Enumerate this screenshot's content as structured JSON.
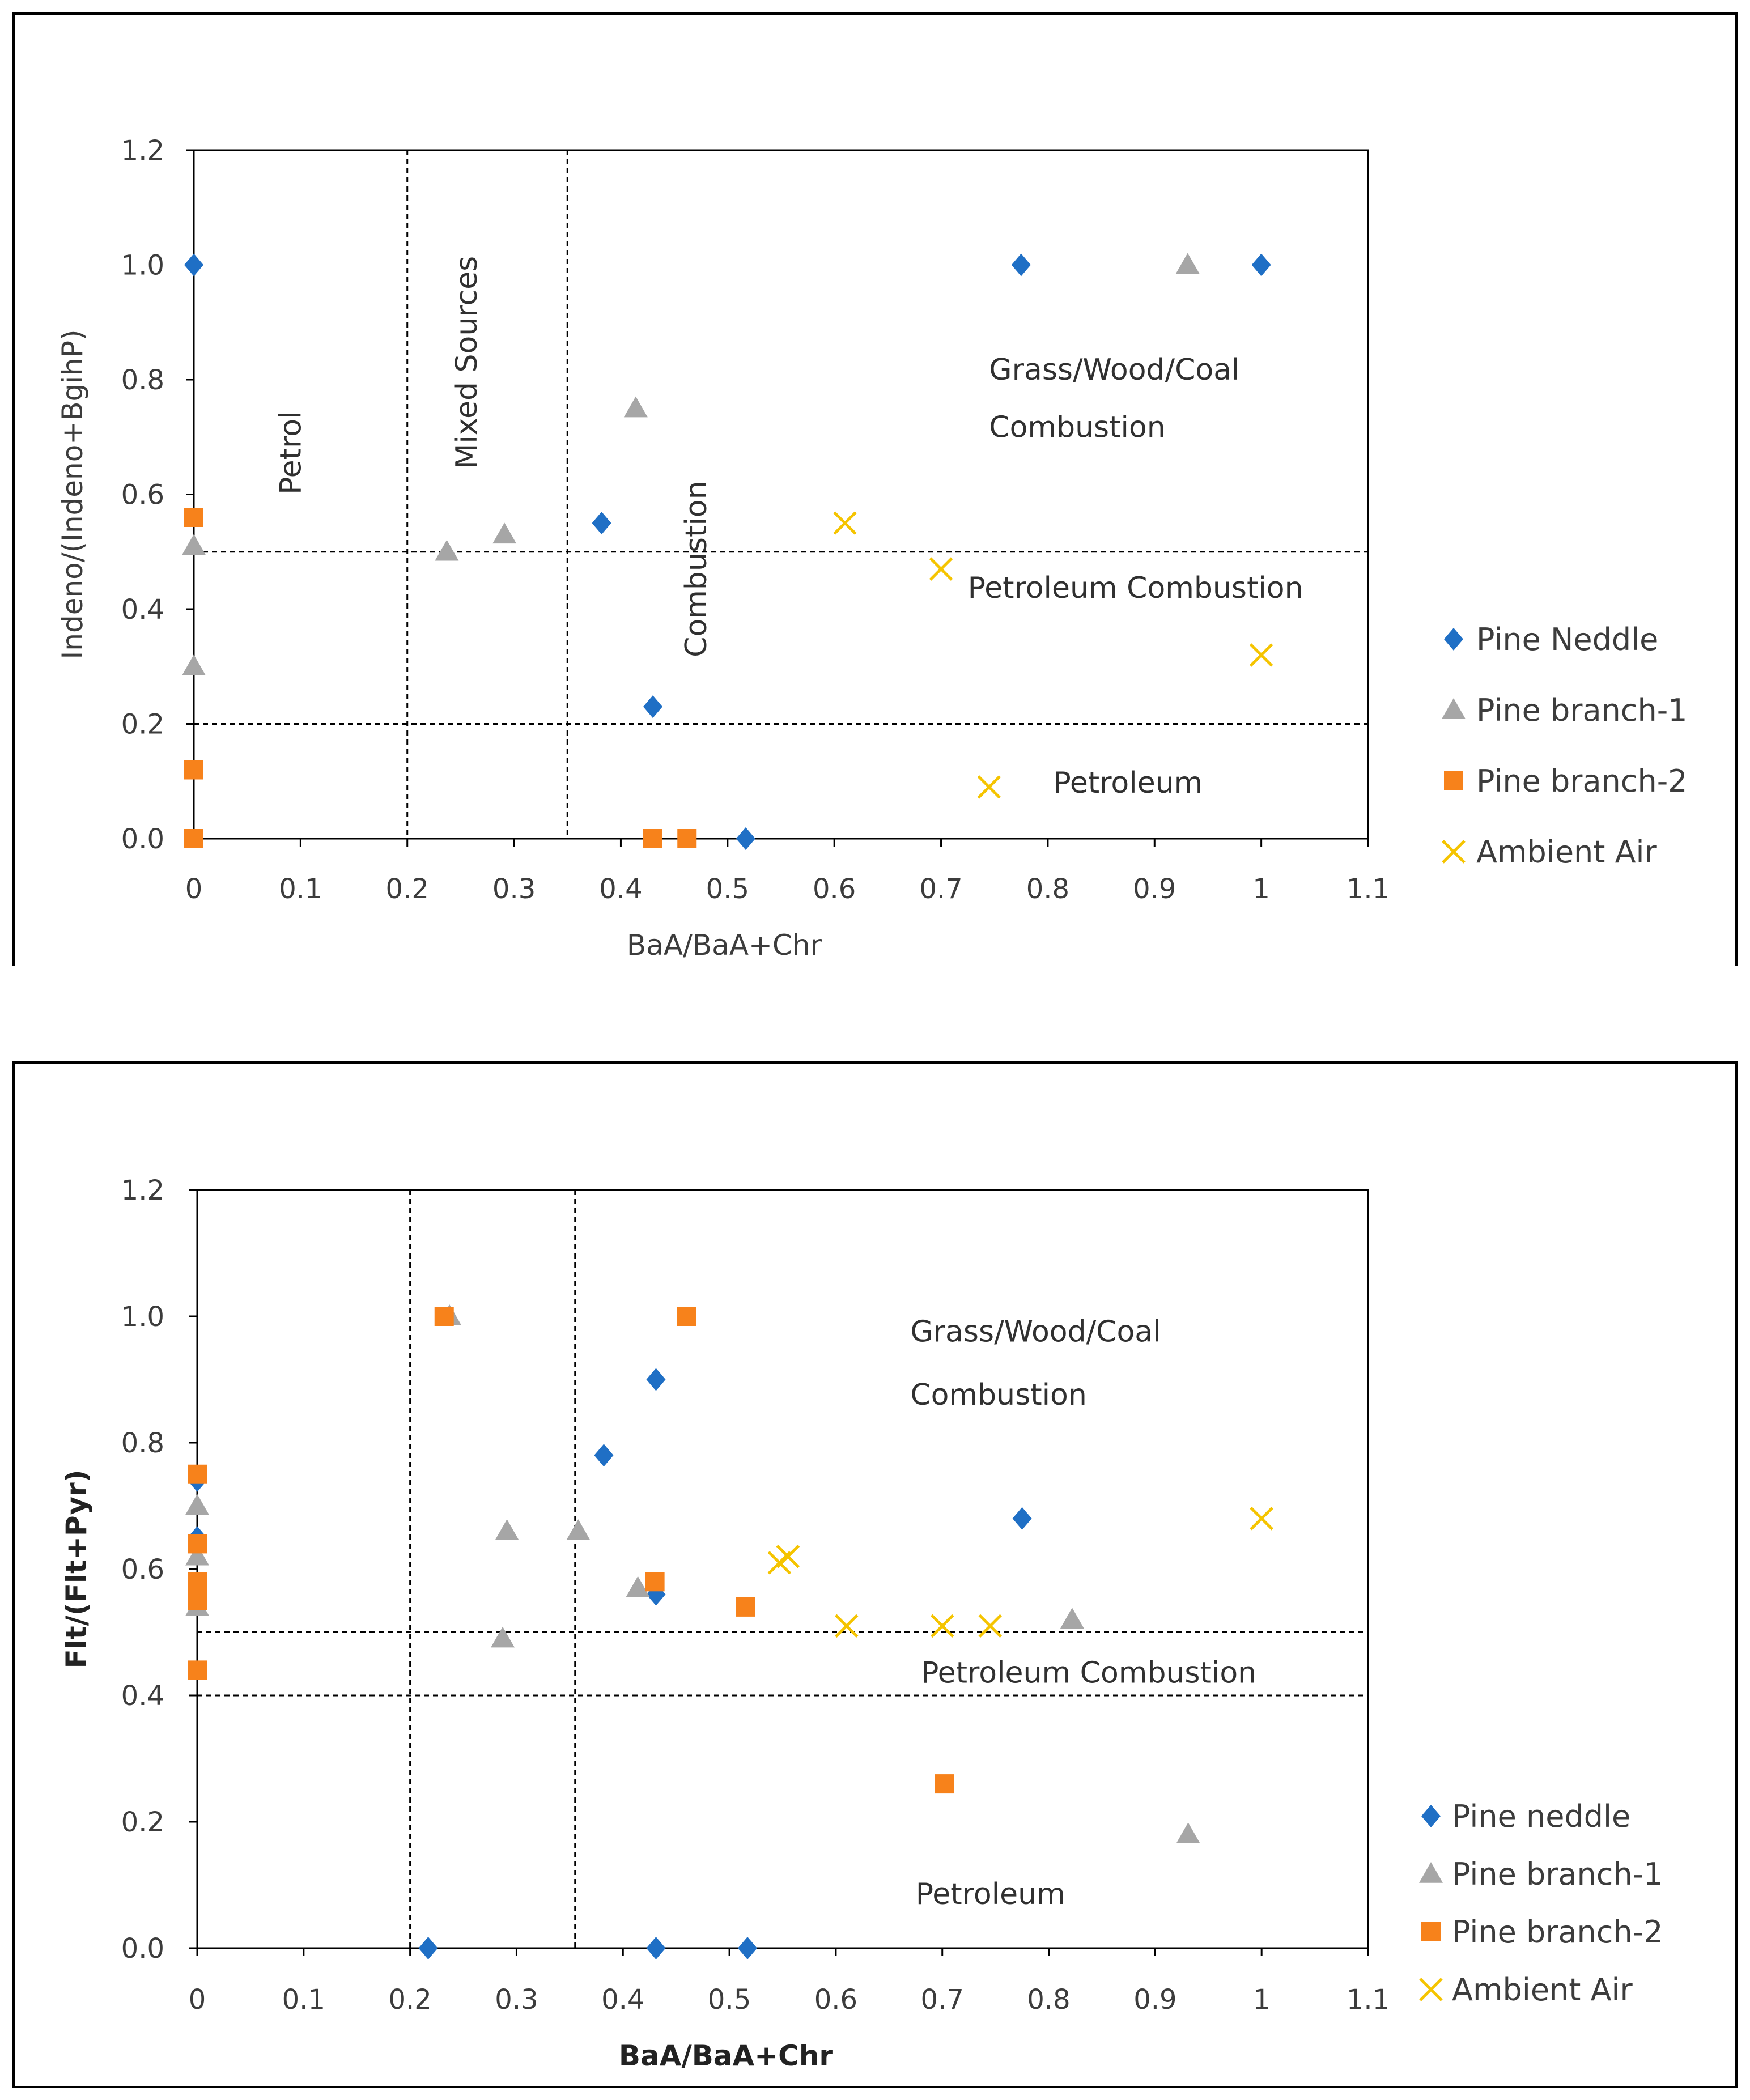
{
  "colors": {
    "pine_needle": "#1f6fc5",
    "pine_branch_1": "#a6a6a6",
    "pine_branch_2": "#f7821b",
    "ambient_air": "#f5c400"
  },
  "chart_data": [
    {
      "type": "scatter",
      "title": "",
      "xlabel": "BaA/BaA+Chr",
      "ylabel": "Indeno/(Indeno+BgihP)",
      "xlim": [
        0,
        1.1
      ],
      "ylim": [
        0,
        1.2
      ],
      "x_ticks": [
        "0",
        "0.1",
        "0.2",
        "0.3",
        "0.4",
        "0.5",
        "0.6",
        "0.7",
        "0.8",
        "0.9",
        "1",
        "1.1"
      ],
      "y_ticks": [
        "0.0",
        "0.2",
        "0.4",
        "0.6",
        "0.8",
        "1.0",
        "1.2"
      ],
      "grid": false,
      "legend_position": "right",
      "reference_lines": {
        "x": [
          0.2,
          0.35
        ],
        "y": [
          0.2,
          0.5
        ]
      },
      "annotations": [
        {
          "text": "Petroleum",
          "x": 0.1,
          "y": 0.73,
          "rotation": 90,
          "clipped": "bottom"
        },
        {
          "text": "Mixed Sources",
          "x": 0.265,
          "y": 0.83,
          "rotation": 90
        },
        {
          "text": "Combustion",
          "x": 0.48,
          "y": 0.47,
          "rotation": 90
        },
        {
          "text": "Grass/Wood/Coal",
          "x": 0.745,
          "y": 0.8,
          "rotation": 0
        },
        {
          "text": "Combustion",
          "x": 0.745,
          "y": 0.7,
          "rotation": 0
        },
        {
          "text": "Petroleum Combustion",
          "x": 0.725,
          "y": 0.42,
          "rotation": 0
        },
        {
          "text": "Petroleum",
          "x": 0.805,
          "y": 0.08,
          "rotation": 0,
          "clipped": "bottom"
        }
      ],
      "series": [
        {
          "name": "Pine Neddle",
          "marker": "diamond",
          "color_key": "pine_needle",
          "points": [
            [
              0,
              1.0
            ],
            [
              0.382,
              0.55
            ],
            [
              0.43,
              0.23
            ],
            [
              0.517,
              0.0
            ],
            [
              0.775,
              1.0
            ],
            [
              1.0,
              1.0
            ]
          ]
        },
        {
          "name": "Pine branch-1",
          "marker": "triangle",
          "color_key": "pine_branch_1",
          "points": [
            [
              0,
              0.51
            ],
            [
              0,
              0.3
            ],
            [
              0.237,
              0.5
            ],
            [
              0.291,
              0.53
            ],
            [
              0.414,
              0.75
            ],
            [
              0.931,
              1.0
            ]
          ]
        },
        {
          "name": "Pine branch-2",
          "marker": "square",
          "color_key": "pine_branch_2",
          "points": [
            [
              0,
              0.56
            ],
            [
              0,
              0.12
            ],
            [
              0,
              0.0
            ],
            [
              0.43,
              0.0
            ],
            [
              0.462,
              0.0
            ]
          ]
        },
        {
          "name": "Ambient Air",
          "marker": "x",
          "color_key": "ambient_air",
          "points": [
            [
              0.61,
              0.55
            ],
            [
              0.7,
              0.47
            ],
            [
              0.745,
              0.09
            ],
            [
              1.0,
              0.32
            ]
          ]
        }
      ]
    },
    {
      "type": "scatter",
      "title": "",
      "xlabel": "BaA/BaA+Chr",
      "ylabel": "Flt/(Flt+Pyr)",
      "xlim": [
        0,
        1.1
      ],
      "ylim": [
        0,
        1.2
      ],
      "x_ticks": [
        "0",
        "0.1",
        "0.2",
        "0.3",
        "0.4",
        "0.5",
        "0.6",
        "0.7",
        "0.8",
        "0.9",
        "1",
        "1.1"
      ],
      "y_ticks": [
        "0.0",
        "0.2",
        "0.4",
        "0.6",
        "0.8",
        "1.0",
        "1.2"
      ],
      "grid": false,
      "legend_position": "right",
      "reference_lines": {
        "x": [
          0.2,
          0.355
        ],
        "y": [
          0.4,
          0.5
        ]
      },
      "annotations": [
        {
          "text": "Grass/Wood/Coal",
          "x": 0.67,
          "y": 0.96,
          "rotation": 0
        },
        {
          "text": "Combustion",
          "x": 0.67,
          "y": 0.86,
          "rotation": 0
        },
        {
          "text": "Petroleum Combustion",
          "x": 0.68,
          "y": 0.42,
          "rotation": 0
        },
        {
          "text": "Petroleum",
          "x": 0.675,
          "y": 0.07,
          "rotation": 0,
          "clipped": "bottom"
        }
      ],
      "series": [
        {
          "name": "Pine neddle",
          "marker": "diamond",
          "color_key": "pine_needle",
          "points": [
            [
              0,
              0.74
            ],
            [
              0,
              0.65
            ],
            [
              0.217,
              0.0
            ],
            [
              0.382,
              0.78
            ],
            [
              0.431,
              0.9
            ],
            [
              0.431,
              0.56
            ],
            [
              0.431,
              0.0
            ],
            [
              0.517,
              0.0
            ],
            [
              0.775,
              0.68
            ]
          ]
        },
        {
          "name": "Pine branch-1",
          "marker": "triangle",
          "color_key": "pine_branch_1",
          "points": [
            [
              0,
              0.7
            ],
            [
              0,
              0.62
            ],
            [
              0,
              0.54
            ],
            [
              0.237,
              1.0
            ],
            [
              0.287,
              0.49
            ],
            [
              0.291,
              0.66
            ],
            [
              0.358,
              0.66
            ],
            [
              0.414,
              0.57
            ],
            [
              0.822,
              0.52
            ],
            [
              0.931,
              0.18
            ]
          ]
        },
        {
          "name": "Pine branch-2",
          "marker": "square",
          "color_key": "pine_branch_2",
          "points": [
            [
              0,
              0.75
            ],
            [
              0,
              0.64
            ],
            [
              0,
              0.58
            ],
            [
              0,
              0.55
            ],
            [
              0,
              0.44
            ],
            [
              0.232,
              1.0
            ],
            [
              0.43,
              0.58
            ],
            [
              0.46,
              1.0
            ],
            [
              0.515,
              0.54
            ],
            [
              0.702,
              0.26
            ]
          ]
        },
        {
          "name": "Ambient Air",
          "marker": "x",
          "color_key": "ambient_air",
          "points": [
            [
              0.547,
              0.61
            ],
            [
              0.555,
              0.62
            ],
            [
              0.61,
              0.51
            ],
            [
              0.7,
              0.51
            ],
            [
              0.745,
              0.51
            ],
            [
              1.0,
              0.68
            ]
          ]
        }
      ]
    }
  ]
}
